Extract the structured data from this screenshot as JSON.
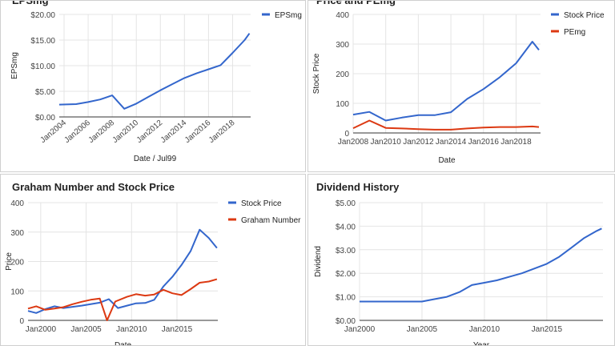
{
  "chart_data": [
    {
      "type": "line",
      "title": "EPSmg",
      "xlabel": "Date / Jul99",
      "ylabel": "EPSmg",
      "x_ticks": [
        "Jan2004",
        "Jan2006",
        "Jan2008",
        "Jan2010",
        "Jan2012",
        "Jan2014",
        "Jan2016",
        "Jan2018"
      ],
      "y_ticks": [
        "$0.00",
        "$5.00",
        "$10.00",
        "$15.00",
        "$20.00"
      ],
      "ylim": [
        0,
        20
      ],
      "xlim": [
        2003.6,
        2019.5
      ],
      "grid": true,
      "legend_position": "top-right",
      "series": [
        {
          "name": "EPSmg",
          "color": "#3366cc",
          "x": [
            2003.6,
            2005,
            2006,
            2007,
            2008,
            2009,
            2010,
            2011,
            2012,
            2013,
            2014,
            2015,
            2016,
            2017,
            2018,
            2019,
            2019.4
          ],
          "y": [
            2.4,
            2.5,
            2.9,
            3.4,
            4.2,
            1.6,
            2.6,
            3.9,
            5.2,
            6.4,
            7.6,
            8.5,
            9.3,
            10.1,
            12.5,
            15.0,
            16.3
          ]
        }
      ]
    },
    {
      "type": "line",
      "title": "Price and PEmg",
      "xlabel": "Date",
      "ylabel": "Stock Price",
      "x_ticks": [
        "Jan2008",
        "Jan2010",
        "Jan2012",
        "Jan2014",
        "Jan2016",
        "Jan2018"
      ],
      "y_ticks": [
        "0",
        "100",
        "200",
        "300",
        "400"
      ],
      "ylim": [
        0,
        400
      ],
      "xlim": [
        2008,
        2019.5
      ],
      "grid": true,
      "legend_position": "top-right",
      "series": [
        {
          "name": "Stock Price",
          "color": "#3366cc",
          "x": [
            2008,
            2009,
            2010,
            2011,
            2012,
            2013,
            2014,
            2015,
            2016,
            2017,
            2018,
            2019,
            2019.4
          ],
          "y": [
            62,
            71,
            42,
            52,
            60,
            60,
            70,
            115,
            148,
            188,
            235,
            308,
            280
          ]
        },
        {
          "name": "PEmg",
          "color": "#dc3912",
          "x": [
            2008,
            2009,
            2010,
            2011,
            2012,
            2013,
            2014,
            2015,
            2016,
            2017,
            2018,
            2019,
            2019.4
          ],
          "y": [
            16,
            42,
            17,
            15,
            13,
            11,
            11,
            15,
            18,
            20,
            20,
            22,
            20
          ]
        }
      ]
    },
    {
      "type": "line",
      "title": "Graham Number and Stock Price",
      "xlabel": "Date",
      "ylabel": "Price",
      "x_ticks": [
        "Jan2000",
        "Jan2005",
        "Jan2010",
        "Jan2015"
      ],
      "y_ticks": [
        "0",
        "100",
        "200",
        "300",
        "400"
      ],
      "ylim": [
        0,
        400
      ],
      "xlim": [
        1998.6,
        2019.5
      ],
      "grid": true,
      "legend_position": "top-right",
      "series": [
        {
          "name": "Stock Price",
          "color": "#3366cc",
          "x": [
            1998.6,
            1999.5,
            2000.5,
            2001.5,
            2002.5,
            2003.5,
            2004.5,
            2005.5,
            2006.5,
            2007.5,
            2008.5,
            2009.5,
            2010.5,
            2011.5,
            2012.5,
            2013.5,
            2014.5,
            2015.5,
            2016.5,
            2017.5,
            2018.5,
            2019.4
          ],
          "y": [
            32,
            25,
            38,
            48,
            42,
            46,
            50,
            55,
            60,
            72,
            42,
            50,
            58,
            59,
            70,
            115,
            148,
            188,
            235,
            308,
            280,
            246
          ]
        },
        {
          "name": "Graham Number",
          "color": "#dc3912",
          "x": [
            1998.6,
            1999.5,
            2000.5,
            2001.5,
            2002.5,
            2003.5,
            2004.5,
            2005.5,
            2006.5,
            2007.3,
            2008.2,
            2009.5,
            2010.5,
            2011.5,
            2012.5,
            2013.5,
            2014.5,
            2015.5,
            2016.5,
            2017.5,
            2018.5,
            2019.4
          ],
          "y": [
            40,
            48,
            36,
            40,
            45,
            55,
            63,
            70,
            74,
            0,
            64,
            80,
            89,
            84,
            88,
            104,
            92,
            86,
            106,
            128,
            132,
            140
          ]
        }
      ]
    },
    {
      "type": "line",
      "title": "Dividend History",
      "xlabel": "Year",
      "ylabel": "Dividend",
      "x_ticks": [
        "Jan2000",
        "Jan2005",
        "Jan2010",
        "Jan2015"
      ],
      "y_ticks": [
        "$0.00",
        "$1.00",
        "$2.00",
        "$3.00",
        "$4.00",
        "$5.00"
      ],
      "ylim": [
        0,
        5
      ],
      "xlim": [
        2000,
        2019.5
      ],
      "grid": true,
      "legend_position": "none",
      "series": [
        {
          "name": "",
          "color": "#3366cc",
          "x": [
            2000,
            2001,
            2002,
            2003,
            2004,
            2005,
            2006,
            2007,
            2008,
            2009,
            2010,
            2011,
            2012,
            2013,
            2014,
            2015,
            2016,
            2017,
            2018,
            2019,
            2019.4
          ],
          "y": [
            0.8,
            0.8,
            0.8,
            0.8,
            0.8,
            0.8,
            0.9,
            1.0,
            1.2,
            1.5,
            1.6,
            1.7,
            1.85,
            2.0,
            2.2,
            2.4,
            2.7,
            3.1,
            3.5,
            3.8,
            3.9
          ]
        }
      ]
    }
  ]
}
